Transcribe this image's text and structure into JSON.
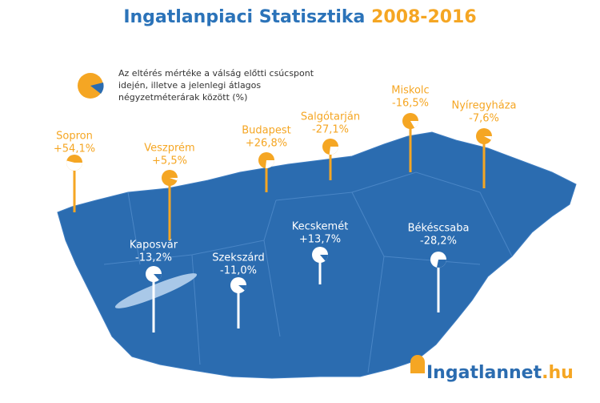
{
  "title": {
    "text": "Ingatlanpiaci Statisztika",
    "years": "2008-2016"
  },
  "legend": {
    "lines": [
      "Az eltérés mértéke a válság előtti csúcspont",
      "idején, illetve a jelenlegi átlagos",
      "négyzetméterárak között (%)"
    ]
  },
  "cities": [
    {
      "name": "Sopron",
      "value": 54.1,
      "label": "+54,1%"
    },
    {
      "name": "Veszprém",
      "value": 5.5,
      "label": "+5,5%"
    },
    {
      "name": "Budapest",
      "value": 26.8,
      "label": "+26,8%"
    },
    {
      "name": "Salgótarján",
      "value": -27.1,
      "label": "-27,1%"
    },
    {
      "name": "Miskolc",
      "value": -16.5,
      "label": "-16,5%"
    },
    {
      "name": "Nyíregyháza",
      "value": -7.6,
      "label": "-7,6%"
    },
    {
      "name": "Kaposvár",
      "value": -13.2,
      "label": "-13,2%"
    },
    {
      "name": "Szekszárd",
      "value": -11.0,
      "label": "-11,0%"
    },
    {
      "name": "Kecskemét",
      "value": 13.7,
      "label": "+13,7%"
    },
    {
      "name": "Békéscsaba",
      "value": -28.2,
      "label": "-28,2%"
    }
  ],
  "logo": {
    "name": "Ingatlannet",
    "domain": ".hu"
  }
}
